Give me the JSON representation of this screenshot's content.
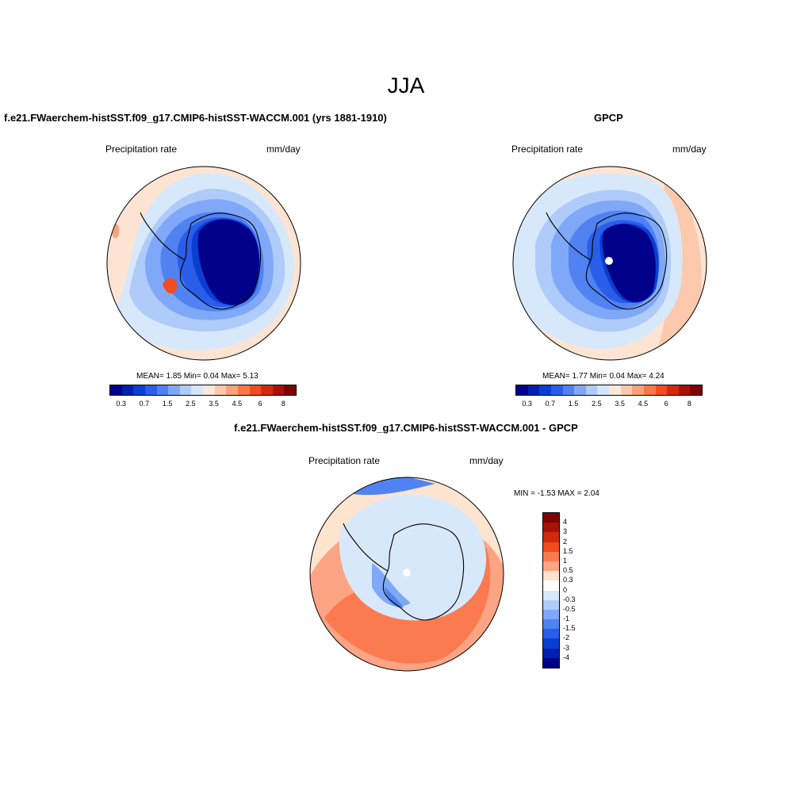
{
  "figure": {
    "title": "JJA"
  },
  "panels": {
    "model": {
      "title": "f.e21.FWaerchem-histSST.f09_g17.CMIP6-histSST-WACCM.001 (yrs 1881-1910)",
      "left_label": "Precipitation rate",
      "right_label": "mm/day",
      "stats": "MEAN=   1.85  Min=   0.04  Max=   5.13",
      "mean": 1.85,
      "min": 0.04,
      "max": 5.13
    },
    "obs": {
      "title": "GPCP",
      "left_label": "Precipitation rate",
      "right_label": "mm/day",
      "stats": "MEAN=   1.77  Min=   0.04  Max=   4.24",
      "mean": 1.77,
      "min": 0.04,
      "max": 4.24
    },
    "diff": {
      "title": "f.e21.FWaerchem-histSST.f09_g17.CMIP6-histSST-WACCM.001 - GPCP",
      "left_label": "Precipitation rate",
      "right_label": "mm/day",
      "stats": "MIN =  -1.53 MAX =   2.04",
      "min": -1.53,
      "max": 2.04
    }
  },
  "colorbars": {
    "abs": {
      "colors": [
        "#00008b",
        "#0020b0",
        "#0a3ed2",
        "#2a5ee8",
        "#5082f2",
        "#7fa8f8",
        "#aecbfa",
        "#d5e6fb",
        "#fde8d8",
        "#fcc9ac",
        "#fba27a",
        "#f87848",
        "#f04c20",
        "#d02a0e",
        "#a81205",
        "#800000"
      ],
      "tick_labels": [
        "0.3",
        "0.7",
        "1.5",
        "2.5",
        "3.5",
        "4.5",
        "6",
        "8"
      ]
    },
    "diff": {
      "colors": [
        "#800000",
        "#a81205",
        "#d02a0e",
        "#f04c20",
        "#fb7a50",
        "#fca484",
        "#fde4cf",
        "#ffffff",
        "#d8e8fb",
        "#aecbfa",
        "#7fa8f8",
        "#5082f2",
        "#2a5ee8",
        "#0a3ed2",
        "#0020b0",
        "#00008b"
      ],
      "tick_labels": [
        "4",
        "3",
        "2",
        "1.5",
        "1",
        "0.5",
        "0.3",
        "0",
        "-0.3",
        "-0.5",
        "-1",
        "-1.5",
        "-2",
        "-3",
        "-4"
      ]
    }
  },
  "chart_data": [
    {
      "type": "heatmap",
      "title": "f.e21.FWaerchem-histSST.f09_g17.CMIP6-histSST-WACCM.001 (yrs 1881-1910)",
      "variable": "Precipitation rate",
      "units": "mm/day",
      "projection": "south polar stereographic",
      "levels": [
        0.3,
        0.7,
        1.5,
        2.5,
        3.5,
        4.5,
        6,
        8
      ],
      "mean": 1.85,
      "min": 0.04,
      "max": 5.13
    },
    {
      "type": "heatmap",
      "title": "GPCP",
      "variable": "Precipitation rate",
      "units": "mm/day",
      "projection": "south polar stereographic",
      "levels": [
        0.3,
        0.7,
        1.5,
        2.5,
        3.5,
        4.5,
        6,
        8
      ],
      "mean": 1.77,
      "min": 0.04,
      "max": 4.24
    },
    {
      "type": "heatmap",
      "title": "f.e21.FWaerchem-histSST.f09_g17.CMIP6-histSST-WACCM.001 - GPCP",
      "variable": "Precipitation rate",
      "units": "mm/day",
      "projection": "south polar stereographic",
      "levels": [
        -4,
        -3,
        -2,
        -1.5,
        -1,
        -0.5,
        -0.3,
        0,
        0.3,
        0.5,
        1,
        1.5,
        2,
        3,
        4
      ],
      "min": -1.53,
      "max": 2.04
    }
  ]
}
